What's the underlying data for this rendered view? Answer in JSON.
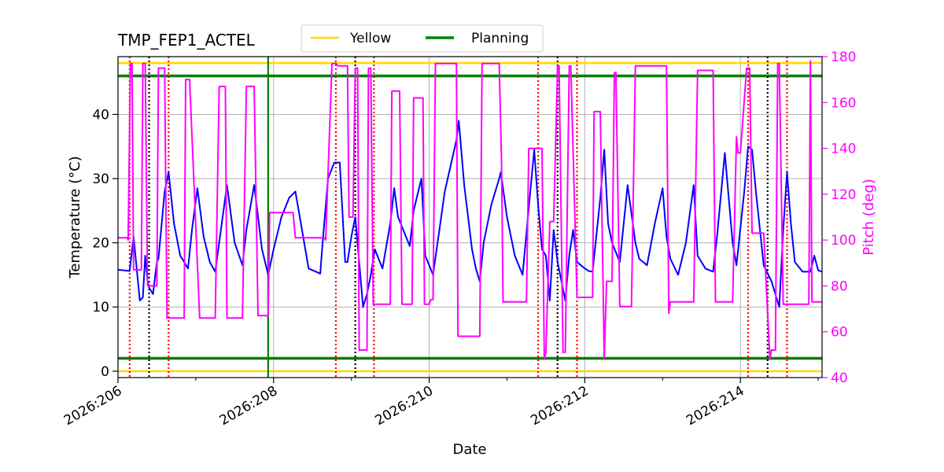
{
  "chart_data": {
    "type": "line",
    "title": "TMP_FEP1_ACTEL",
    "xlabel": "Date",
    "ylabel_left": "Temperature (°C)",
    "ylabel_right": "Pitch (deg)",
    "x_range_days": [
      206.0,
      215.05
    ],
    "y_left_range": [
      -1,
      49
    ],
    "y_right_range": [
      40,
      180
    ],
    "x_ticks": [
      {
        "day": 206,
        "label": "2026:206"
      },
      {
        "day": 208,
        "label": "2026:208"
      },
      {
        "day": 210,
        "label": "2026:210"
      },
      {
        "day": 212,
        "label": "2026:212"
      },
      {
        "day": 214,
        "label": "2026:214"
      }
    ],
    "x_minor_ticks": [
      207,
      209,
      211,
      213,
      215
    ],
    "y_left_ticks": [
      0,
      10,
      20,
      30,
      40
    ],
    "y_right_ticks": [
      40,
      60,
      80,
      100,
      120,
      140,
      160,
      180
    ],
    "grid": true,
    "legend": {
      "placement": "top-center",
      "entries": [
        {
          "label": "Yellow",
          "color": "#ffd700"
        },
        {
          "label": "Planning",
          "color": "#008000"
        }
      ]
    },
    "limit_lines": [
      {
        "name": "Yellow",
        "value": 48,
        "color": "#ffd700"
      },
      {
        "name": "Yellow",
        "value": 0,
        "color": "#ffd700"
      },
      {
        "name": "Planning",
        "value": 46,
        "color": "#008000"
      },
      {
        "name": "Planning",
        "value": 2,
        "color": "#008000"
      }
    ],
    "vertical_markers": {
      "green_solid": [
        207.93
      ],
      "red_dotted": [
        206.15,
        206.65,
        208.8,
        209.29,
        211.4,
        211.9,
        214.1,
        214.6
      ],
      "black_dotted": [
        206.4,
        209.05,
        211.65,
        214.35
      ]
    },
    "series": [
      {
        "name": "TMP_FEP1_ACTEL",
        "axis": "left",
        "color": "#0000ff",
        "x": [
          206.0,
          206.15,
          206.2,
          206.28,
          206.32,
          206.35,
          206.38,
          206.4,
          206.45,
          206.5,
          206.52,
          206.6,
          206.65,
          206.72,
          206.8,
          206.9,
          206.95,
          207.02,
          207.1,
          207.18,
          207.25,
          207.3,
          207.4,
          207.5,
          207.6,
          207.65,
          207.75,
          207.85,
          207.93,
          208.0,
          208.1,
          208.2,
          208.28,
          208.45,
          208.6,
          208.63,
          208.7,
          208.78,
          208.85,
          208.92,
          208.95,
          209.0,
          209.05,
          209.1,
          209.15,
          209.2,
          209.25,
          209.3,
          209.4,
          209.5,
          209.55,
          209.6,
          209.75,
          209.8,
          209.9,
          209.95,
          210.05,
          210.2,
          210.35,
          210.38,
          210.45,
          210.55,
          210.6,
          210.65,
          210.7,
          210.8,
          210.9,
          210.92,
          211.0,
          211.1,
          211.2,
          211.3,
          211.35,
          211.4,
          211.45,
          211.5,
          211.55,
          211.6,
          211.65,
          211.7,
          211.75,
          211.8,
          211.85,
          211.9,
          211.95,
          212.0,
          212.05,
          212.1,
          212.2,
          212.25,
          212.3,
          212.35,
          212.45,
          212.55,
          212.65,
          212.7,
          212.8,
          212.9,
          213.0,
          213.05,
          213.1,
          213.2,
          213.3,
          213.4,
          213.45,
          213.55,
          213.65,
          213.7,
          213.8,
          213.9,
          213.95,
          214.05,
          214.1,
          214.15,
          214.2,
          214.3,
          214.4,
          214.45,
          214.5,
          214.55,
          214.6,
          214.65,
          214.7,
          214.8,
          214.9,
          214.95,
          215.0,
          215.05
        ],
        "y": [
          15.8,
          15.6,
          21.0,
          11.0,
          11.5,
          18.0,
          14.0,
          13.0,
          12.0,
          17.0,
          17.5,
          28.0,
          31.0,
          23.0,
          18.0,
          16.0,
          22.0,
          28.5,
          21.0,
          17.0,
          15.5,
          20.0,
          29.0,
          20.0,
          16.5,
          22.0,
          29.0,
          19.0,
          15.0,
          19.0,
          24.0,
          27.0,
          28.0,
          16.0,
          15.2,
          20.0,
          30.0,
          32.5,
          32.5,
          17.0,
          17.0,
          21.0,
          24.0,
          17.0,
          10.0,
          12.0,
          15.0,
          19.0,
          16.0,
          23.0,
          28.5,
          24.0,
          19.5,
          25.0,
          30.0,
          18.0,
          15.0,
          28.0,
          36.0,
          39.0,
          29.0,
          19.0,
          16.0,
          14.0,
          20.0,
          26.0,
          30.0,
          31.0,
          24.0,
          18.0,
          15.0,
          28.0,
          34.5,
          26.0,
          19.0,
          18.0,
          11.0,
          22.0,
          17.0,
          14.0,
          11.0,
          18.0,
          22.0,
          17.0,
          16.5,
          16.0,
          15.6,
          15.5,
          27.0,
          34.5,
          23.0,
          20.0,
          17.0,
          29.0,
          20.0,
          17.5,
          16.5,
          23.0,
          28.5,
          21.0,
          17.5,
          15.0,
          20.0,
          29.0,
          18.0,
          16.0,
          15.5,
          21.0,
          34.0,
          20.0,
          16.5,
          28.0,
          35.0,
          34.5,
          28.0,
          16.5,
          14.0,
          12.0,
          10.0,
          22.0,
          31.0,
          23.0,
          17.0,
          15.5,
          15.5,
          18.0,
          15.7,
          15.5
        ],
        "note_units": "deg C"
      },
      {
        "name": "Pitch",
        "axis": "right",
        "color": "#ff00ff",
        "x": [
          206.0,
          206.12,
          206.13,
          206.16,
          206.18,
          206.2,
          206.3,
          206.32,
          206.35,
          206.38,
          206.4,
          206.5,
          206.52,
          206.6,
          206.63,
          206.65,
          206.85,
          206.87,
          206.92,
          207.05,
          207.08,
          207.25,
          207.3,
          207.38,
          207.4,
          207.6,
          207.65,
          207.75,
          207.8,
          207.93,
          207.95,
          208.25,
          208.28,
          208.65,
          208.67,
          208.75,
          208.8,
          208.83,
          208.95,
          208.97,
          209.02,
          209.05,
          209.08,
          209.1,
          209.2,
          209.22,
          209.25,
          209.28,
          209.3,
          209.5,
          209.52,
          209.62,
          209.65,
          209.78,
          209.8,
          209.92,
          209.94,
          210.0,
          210.02,
          210.05,
          210.08,
          210.3,
          210.35,
          210.37,
          210.6,
          210.65,
          210.68,
          210.9,
          210.93,
          210.95,
          211.25,
          211.28,
          211.45,
          211.48,
          211.5,
          211.55,
          211.6,
          211.65,
          211.67,
          211.72,
          211.75,
          211.8,
          211.82,
          211.9,
          211.92,
          212.1,
          212.12,
          212.2,
          212.25,
          212.28,
          212.3,
          212.35,
          212.38,
          212.4,
          212.45,
          212.5,
          212.6,
          212.65,
          212.9,
          213.05,
          213.08,
          213.1,
          213.15,
          213.4,
          213.45,
          213.65,
          213.68,
          213.9,
          213.95,
          213.97,
          214.0,
          214.08,
          214.12,
          214.15,
          214.18,
          214.3,
          214.38,
          214.4,
          214.45,
          214.48,
          214.5,
          214.55,
          214.58,
          214.6,
          214.65,
          214.88,
          214.9,
          214.92,
          214.95,
          215.0,
          215.05
        ],
        "y": [
          101,
          101,
          100,
          177,
          177,
          87,
          87,
          177,
          177,
          80,
          80,
          80,
          175,
          175,
          66,
          66,
          66,
          170,
          170,
          66,
          66,
          66,
          167,
          167,
          66,
          66,
          167,
          167,
          67,
          67,
          112,
          112,
          101,
          101,
          100,
          177,
          177,
          176,
          176,
          110,
          110,
          175,
          175,
          52,
          52,
          175,
          175,
          72,
          72,
          72,
          165,
          165,
          72,
          72,
          162,
          162,
          72,
          72,
          74,
          74,
          177,
          177,
          177,
          58,
          58,
          58,
          177,
          177,
          133,
          73,
          73,
          140,
          140,
          48,
          51,
          108,
          108,
          176,
          176,
          51,
          51,
          176,
          176,
          75,
          75,
          75,
          156,
          156,
          48,
          82,
          82,
          82,
          173,
          173,
          71,
          71,
          71,
          176,
          176,
          176,
          68,
          73,
          73,
          73,
          174,
          174,
          73,
          73,
          145,
          138,
          138,
          175,
          175,
          103,
          103,
          103,
          48,
          52,
          52,
          177,
          177,
          72,
          72,
          72,
          72,
          72,
          178,
          73,
          73,
          73,
          73
        ],
        "note_units": "deg"
      }
    ]
  }
}
